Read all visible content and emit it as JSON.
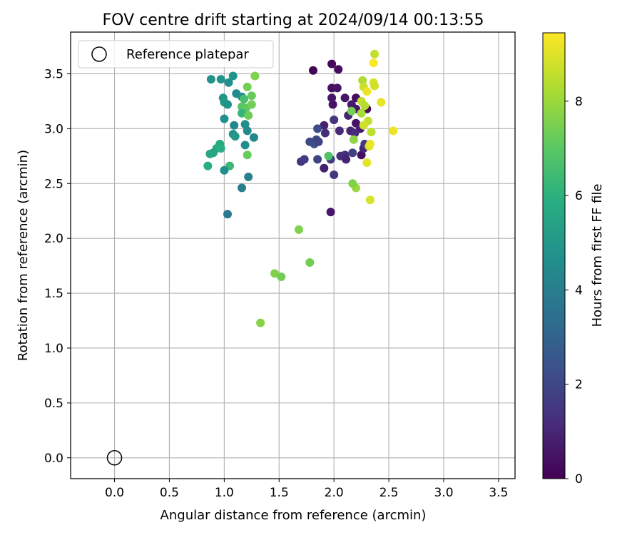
{
  "chart_data": {
    "type": "scatter",
    "title": "FOV centre drift starting at 2024/09/14 00:13:55",
    "xlabel": "Angular distance from reference (arcmin)",
    "ylabel": "Rotation from reference (arcmin)",
    "xlim": [
      -0.4,
      3.65
    ],
    "ylim": [
      -0.19,
      3.88
    ],
    "x_ticks": [
      0.0,
      0.5,
      1.0,
      1.5,
      2.0,
      2.5,
      3.0,
      3.5
    ],
    "x_tick_labels": [
      "0.0",
      "0.5",
      "1.0",
      "1.5",
      "2.0",
      "2.5",
      "3.0",
      "3.5"
    ],
    "y_ticks": [
      0.0,
      0.5,
      1.0,
      1.5,
      2.0,
      2.5,
      3.0,
      3.5
    ],
    "y_tick_labels": [
      "0.0",
      "0.5",
      "1.0",
      "1.5",
      "2.0",
      "2.5",
      "3.0",
      "3.5"
    ],
    "grid": true,
    "legend": {
      "position": "top-left",
      "entries": [
        "Reference platepar"
      ]
    },
    "reference_point": {
      "name": "Reference platepar",
      "x": 0.0,
      "y": 0.0
    },
    "colorbar": {
      "label": "Hours from first FF file",
      "min": 0.0,
      "max": 9.45,
      "ticks": [
        0,
        2,
        4,
        6,
        8
      ],
      "tick_labels": [
        "0",
        "2",
        "4",
        "6",
        "8"
      ],
      "colormap": "viridis"
    },
    "points": [
      {
        "x": 1.81,
        "y": 3.53,
        "c": 0.1
      },
      {
        "x": 1.98,
        "y": 3.59,
        "c": 0.2
      },
      {
        "x": 2.04,
        "y": 3.54,
        "c": 0.3
      },
      {
        "x": 1.98,
        "y": 3.37,
        "c": 0.4
      },
      {
        "x": 2.03,
        "y": 3.37,
        "c": 0.5
      },
      {
        "x": 1.98,
        "y": 3.28,
        "c": 0.6
      },
      {
        "x": 1.99,
        "y": 3.22,
        "c": 0.5
      },
      {
        "x": 2.1,
        "y": 3.28,
        "c": 0.6
      },
      {
        "x": 2.16,
        "y": 3.22,
        "c": 0.7
      },
      {
        "x": 2.2,
        "y": 3.28,
        "c": 0.4
      },
      {
        "x": 2.2,
        "y": 3.18,
        "c": 0.5
      },
      {
        "x": 2.3,
        "y": 3.18,
        "c": 0.3
      },
      {
        "x": 2.13,
        "y": 3.12,
        "c": 0.9
      },
      {
        "x": 2.2,
        "y": 3.05,
        "c": 0.5
      },
      {
        "x": 2.24,
        "y": 3.0,
        "c": 0.7
      },
      {
        "x": 1.91,
        "y": 3.03,
        "c": 0.9
      },
      {
        "x": 1.92,
        "y": 2.96,
        "c": 1.2
      },
      {
        "x": 2.05,
        "y": 2.98,
        "c": 1.1
      },
      {
        "x": 2.15,
        "y": 2.98,
        "c": 1.0
      },
      {
        "x": 2.19,
        "y": 2.96,
        "c": 1.2
      },
      {
        "x": 2.0,
        "y": 3.08,
        "c": 1.4
      },
      {
        "x": 1.85,
        "y": 3.0,
        "c": 2.2
      },
      {
        "x": 1.78,
        "y": 2.88,
        "c": 2.1
      },
      {
        "x": 1.82,
        "y": 2.86,
        "c": 2.3
      },
      {
        "x": 1.84,
        "y": 2.9,
        "c": 2.0
      },
      {
        "x": 1.86,
        "y": 2.88,
        "c": 1.9
      },
      {
        "x": 1.97,
        "y": 2.72,
        "c": 1.6
      },
      {
        "x": 2.0,
        "y": 2.58,
        "c": 1.5
      },
      {
        "x": 1.91,
        "y": 2.64,
        "c": 0.8
      },
      {
        "x": 1.97,
        "y": 2.24,
        "c": 0.6
      },
      {
        "x": 1.7,
        "y": 2.7,
        "c": 1.4
      },
      {
        "x": 1.73,
        "y": 2.72,
        "c": 1.7
      },
      {
        "x": 1.85,
        "y": 2.72,
        "c": 1.9
      },
      {
        "x": 2.06,
        "y": 2.75,
        "c": 1.3
      },
      {
        "x": 2.1,
        "y": 2.76,
        "c": 1.2
      },
      {
        "x": 2.11,
        "y": 2.72,
        "c": 0.9
      },
      {
        "x": 2.17,
        "y": 2.78,
        "c": 1.8
      },
      {
        "x": 2.25,
        "y": 2.76,
        "c": 0.4
      },
      {
        "x": 2.27,
        "y": 2.82,
        "c": 1.0
      },
      {
        "x": 2.28,
        "y": 2.86,
        "c": 1.6
      },
      {
        "x": 1.95,
        "y": 2.75,
        "c": 6.8
      },
      {
        "x": 2.18,
        "y": 2.9,
        "c": 7.8
      },
      {
        "x": 2.16,
        "y": 3.16,
        "c": 7.4
      },
      {
        "x": 2.26,
        "y": 3.44,
        "c": 8.3
      },
      {
        "x": 2.27,
        "y": 3.38,
        "c": 8.7
      },
      {
        "x": 2.3,
        "y": 3.34,
        "c": 9.2
      },
      {
        "x": 2.25,
        "y": 3.25,
        "c": 8.6
      },
      {
        "x": 2.28,
        "y": 3.21,
        "c": 8.4
      },
      {
        "x": 2.25,
        "y": 3.14,
        "c": 8.2
      },
      {
        "x": 2.31,
        "y": 3.07,
        "c": 8.6
      },
      {
        "x": 2.27,
        "y": 3.03,
        "c": 8.8
      },
      {
        "x": 2.34,
        "y": 2.97,
        "c": 8.5
      },
      {
        "x": 2.32,
        "y": 2.84,
        "c": 9.0
      },
      {
        "x": 2.33,
        "y": 2.86,
        "c": 9.2
      },
      {
        "x": 2.3,
        "y": 2.69,
        "c": 9.1
      },
      {
        "x": 2.33,
        "y": 2.35,
        "c": 8.9
      },
      {
        "x": 2.2,
        "y": 2.46,
        "c": 8.0
      },
      {
        "x": 2.37,
        "y": 3.68,
        "c": 8.6
      },
      {
        "x": 2.36,
        "y": 3.6,
        "c": 9.4
      },
      {
        "x": 2.36,
        "y": 3.42,
        "c": 8.9
      },
      {
        "x": 2.37,
        "y": 3.39,
        "c": 8.8
      },
      {
        "x": 2.43,
        "y": 3.24,
        "c": 9.1
      },
      {
        "x": 2.54,
        "y": 2.98,
        "c": 9.2
      },
      {
        "x": 2.17,
        "y": 2.5,
        "c": 7.6
      },
      {
        "x": 1.68,
        "y": 2.08,
        "c": 7.6
      },
      {
        "x": 1.78,
        "y": 1.78,
        "c": 7.4
      },
      {
        "x": 1.46,
        "y": 1.68,
        "c": 7.6
      },
      {
        "x": 1.52,
        "y": 1.65,
        "c": 7.4
      },
      {
        "x": 1.33,
        "y": 1.23,
        "c": 7.7
      },
      {
        "x": 0.88,
        "y": 3.45,
        "c": 4.8
      },
      {
        "x": 0.97,
        "y": 3.45,
        "c": 4.9
      },
      {
        "x": 1.04,
        "y": 3.42,
        "c": 4.7
      },
      {
        "x": 1.08,
        "y": 3.48,
        "c": 4.9
      },
      {
        "x": 1.28,
        "y": 3.48,
        "c": 7.6
      },
      {
        "x": 1.11,
        "y": 3.32,
        "c": 4.5
      },
      {
        "x": 1.16,
        "y": 3.29,
        "c": 4.8
      },
      {
        "x": 0.99,
        "y": 3.28,
        "c": 4.9
      },
      {
        "x": 1.0,
        "y": 3.24,
        "c": 5.0
      },
      {
        "x": 1.03,
        "y": 3.22,
        "c": 4.8
      },
      {
        "x": 1.21,
        "y": 3.38,
        "c": 7.4
      },
      {
        "x": 1.25,
        "y": 3.3,
        "c": 7.2
      },
      {
        "x": 1.18,
        "y": 3.27,
        "c": 6.6
      },
      {
        "x": 1.16,
        "y": 3.2,
        "c": 6.9
      },
      {
        "x": 1.2,
        "y": 3.19,
        "c": 7.1
      },
      {
        "x": 1.25,
        "y": 3.22,
        "c": 7.4
      },
      {
        "x": 1.16,
        "y": 3.14,
        "c": 6.2
      },
      {
        "x": 1.22,
        "y": 3.12,
        "c": 7.3
      },
      {
        "x": 1.0,
        "y": 3.09,
        "c": 4.7
      },
      {
        "x": 1.09,
        "y": 3.03,
        "c": 4.3
      },
      {
        "x": 1.19,
        "y": 3.04,
        "c": 4.6
      },
      {
        "x": 1.21,
        "y": 2.98,
        "c": 4.5
      },
      {
        "x": 1.08,
        "y": 2.95,
        "c": 4.8
      },
      {
        "x": 1.1,
        "y": 2.93,
        "c": 5.0
      },
      {
        "x": 1.27,
        "y": 2.92,
        "c": 4.4
      },
      {
        "x": 1.19,
        "y": 2.85,
        "c": 4.6
      },
      {
        "x": 0.96,
        "y": 2.86,
        "c": 5.7
      },
      {
        "x": 0.93,
        "y": 2.82,
        "c": 5.8
      },
      {
        "x": 0.97,
        "y": 2.82,
        "c": 5.9
      },
      {
        "x": 0.9,
        "y": 2.78,
        "c": 5.5
      },
      {
        "x": 0.87,
        "y": 2.77,
        "c": 5.6
      },
      {
        "x": 1.21,
        "y": 2.76,
        "c": 7.2
      },
      {
        "x": 0.85,
        "y": 2.66,
        "c": 5.9
      },
      {
        "x": 1.05,
        "y": 2.66,
        "c": 6.3
      },
      {
        "x": 1.0,
        "y": 2.62,
        "c": 4.6
      },
      {
        "x": 1.22,
        "y": 2.56,
        "c": 4.2
      },
      {
        "x": 1.16,
        "y": 2.46,
        "c": 4.0
      },
      {
        "x": 1.03,
        "y": 2.22,
        "c": 3.8
      }
    ]
  }
}
